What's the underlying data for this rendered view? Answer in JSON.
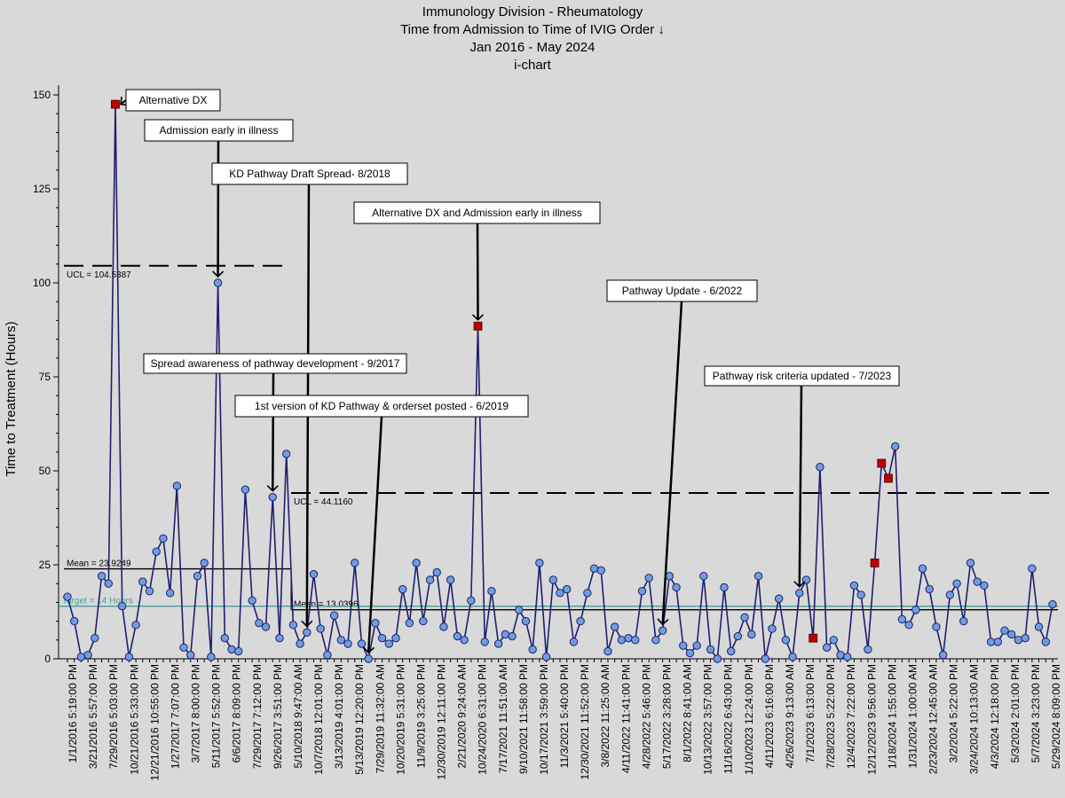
{
  "titles": {
    "line1": "Immunology Division - Rheumatology",
    "line2": "Time from Admission to Time of IVIG Order ↓",
    "line3": "Jan 2016 - May 2024",
    "line4": "i-chart"
  },
  "chart_data": {
    "type": "line",
    "subtype": "i-chart",
    "title": "Immunology Division - Rheumatology",
    "ylabel": "Time to Treatment (Hours)",
    "ylim": [
      0,
      150
    ],
    "yticks": [
      0,
      25,
      50,
      75,
      100,
      125,
      150
    ],
    "grid": false,
    "x_tick_labels": [
      "1/1/2016 5:19:00 PM",
      "3/21/2016 5:57:00 PM",
      "7/29/2016 5:03:00 PM",
      "10/21/2016 5:33:00 PM",
      "12/21/2016 10:55:00 PM",
      "1/27/2017 7:07:00 PM",
      "3/7/2017 8:00:00 PM",
      "5/11/2017 5:52:00 PM",
      "6/6/2017 8:09:00 PM",
      "7/29/2017 7:12:00 PM",
      "9/26/2017 3:51:00 PM",
      "5/10/2018 9:47:00 AM",
      "10/7/2018 12:01:00 PM",
      "3/13/2019 4:01:00 PM",
      "5/13/2019 12:20:00 PM",
      "7/29/2019 11:32:00 AM",
      "10/20/2019 5:31:00 PM",
      "11/9/2019 3:25:00 PM",
      "12/30/2019 12:11:00 PM",
      "2/21/2020 9:24:00 AM",
      "10/24/2020 6:31:00 PM",
      "7/17/2021 11:51:00 AM",
      "9/10/2021 11:58:00 PM",
      "10/17/2021 3:59:00 PM",
      "11/3/2021 5:40:00 PM",
      "12/30/2021 11:52:00 PM",
      "3/8/2022 11:25:00 AM",
      "4/11/2022 11:41:00 PM",
      "4/28/2022 5:46:00 PM",
      "5/17/2022 3:28:00 PM",
      "8/1/2022 8:41:00 AM",
      "10/13/2022 3:57:00 PM",
      "11/16/2022 6:43:00 PM",
      "1/10/2023 12:24:00 PM",
      "4/11/2023 6:16:00 PM",
      "4/26/2023 9:13:00 AM",
      "7/1/2023 6:13:00 PM",
      "7/28/2023 5:22:00 PM",
      "12/4/2023 7:22:00 PM",
      "12/12/2023 9:56:00 PM",
      "1/18/2024 1:55:00 PM",
      "1/31/2024 1:00:00 AM",
      "2/23/2024 12:45:00 AM",
      "3/2/2024 5:22:00 PM",
      "3/24/2024 10:13:00 AM",
      "4/3/2024 12:18:00 PM",
      "5/3/2024 2:01:00 PM",
      "5/7/2024 3:23:00 PM",
      "5/29/2024 8:09:00 PM"
    ],
    "series": [
      {
        "values": [
          16.5,
          10,
          0.5,
          1,
          5.5,
          22,
          20,
          147.5,
          14,
          0.5,
          9,
          20.5,
          18,
          28.5,
          32,
          17.5,
          46,
          3,
          1,
          22,
          25.5,
          0.5,
          100,
          5.5,
          2.5,
          2,
          45,
          15.5,
          9.5,
          8.5,
          43,
          5.5,
          54.5,
          9,
          4,
          7,
          22.5,
          8,
          1,
          11.5,
          5,
          4,
          25.5,
          4,
          0,
          9.5,
          5.5,
          4,
          5.5,
          18.5,
          9.5,
          25.5,
          10,
          21,
          23,
          8.5,
          21,
          6,
          5,
          15.5,
          88.5,
          4.5,
          18,
          4,
          6.5,
          6,
          13,
          10,
          2.5,
          25.5,
          0.5,
          21,
          17.5,
          18.5,
          4.5,
          10,
          17.5,
          24,
          23.5,
          2,
          8.5,
          5,
          5.5,
          5,
          18,
          21.5,
          5,
          7.5,
          22,
          19,
          3.5,
          1.5,
          3.5,
          22,
          2.5,
          0,
          19,
          2,
          6,
          11,
          6.5,
          22,
          0,
          8,
          16,
          5,
          0.5,
          17.5,
          21,
          5.5,
          51,
          3,
          5,
          1,
          0.5,
          19.5,
          17,
          2.5,
          25.5,
          52,
          48,
          56.5,
          10.5,
          9,
          13,
          24,
          18.5,
          8.5,
          1,
          17,
          20,
          10,
          25.5,
          20.5,
          19.5,
          4.5,
          4.5,
          7.5,
          6.5,
          5,
          5.5,
          24,
          8.5,
          4.5,
          14.5
        ],
        "signal_indices": [
          7,
          60,
          109,
          118,
          119,
          120
        ]
      }
    ],
    "reference_lines": [
      {
        "label": "UCL = 104.5387",
        "value": 104.5387,
        "style": "dashed",
        "phase": 1
      },
      {
        "label": "Mean = 23.9249",
        "value": 23.9249,
        "style": "solid",
        "phase": 1
      },
      {
        "label": "UCL = 44.1160",
        "value": 44.116,
        "style": "dashed",
        "phase": 2
      },
      {
        "label": "Mean = 13.0396",
        "value": 13.0396,
        "style": "solid",
        "phase": 2
      },
      {
        "label": "Target = 14 Hours",
        "value": 14,
        "style": "solid",
        "color": "#4a9c9c"
      }
    ],
    "annotations": [
      {
        "text": "Alternative DX",
        "point_index": 7
      },
      {
        "text": "Admission early in illness",
        "point_index": 22
      },
      {
        "text": "KD Pathway Draft Spread- 8/2018",
        "point_index": 35
      },
      {
        "text": "Alternative DX and Admission early in illness",
        "point_index": 60
      },
      {
        "text": "Pathway Update - 6/2022",
        "point_index": 87
      },
      {
        "text": "Spread awareness of pathway development - 9/2017",
        "point_index": 30
      },
      {
        "text": "1st version of KD Pathway & orderset posted - 6/2019",
        "point_index": 44
      },
      {
        "text": "Pathway risk criteria updated - 7/2023",
        "point_index": 107
      }
    ],
    "colors": {
      "line": "#1f1f6e",
      "point": "#6f9ee0",
      "signal": "#c00000",
      "target": "#4a9c9c"
    }
  }
}
